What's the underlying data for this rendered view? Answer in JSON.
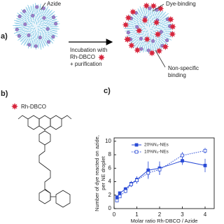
{
  "panel_a": {
    "label": "a)",
    "azide_label": "Azide",
    "dye_label": "Dye-binding",
    "step_lines": [
      "Incubation with",
      "Rh-DBCO",
      "+ purification"
    ],
    "nonspecific_lines": [
      "Non-specific",
      "binding"
    ]
  },
  "panel_b": {
    "label": "b)",
    "compound": "Rh-DBCO"
  },
  "chart_data": {
    "type": "line",
    "panel_label": "c)",
    "x_label": "Molar ratio Rh-DBCO / Azide",
    "y_label": [
      "Number of dye reacted on azide,",
      "per NE droplet"
    ],
    "x": [
      0.125,
      0.25,
      0.5,
      0.75,
      1,
      1.5,
      2,
      3,
      4
    ],
    "series": [
      {
        "name": "20%N₃-NEs",
        "color": "#2a4bd6",
        "linestyle": "solid",
        "marker": "filled",
        "values": [
          1.7,
          2.3,
          2.9,
          3.7,
          4.3,
          5.7,
          6.0,
          7.1,
          6.4
        ],
        "errors": [
          0.2,
          0.2,
          0.3,
          0.4,
          0.5,
          1.3,
          1.0,
          0.6,
          1.0
        ]
      },
      {
        "name": "10%N₃-NEs",
        "color": "#2a4bd6",
        "linestyle": "dotted",
        "marker": "open",
        "values": [
          1.2,
          1.8,
          2.6,
          3.6,
          4.2,
          5.3,
          5.8,
          7.9,
          8.6
        ],
        "errors": [
          0.2,
          0.2,
          0.3,
          0.4,
          0.5,
          0.7,
          0.8,
          0.5,
          0.4
        ]
      }
    ],
    "xlim": [
      0,
      4.4
    ],
    "ylim": [
      0,
      10.5
    ],
    "xticks": [
      0,
      1,
      2,
      3,
      4
    ],
    "yticks": [
      0,
      2,
      4,
      6,
      8,
      10
    ],
    "legend": "upper left"
  }
}
